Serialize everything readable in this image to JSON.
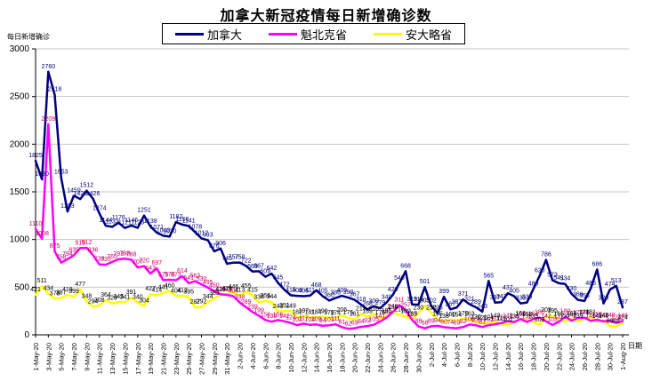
{
  "title": "加拿大新冠疫情每日新增确诊数",
  "y_axis_title": "每日新增确诊",
  "x_axis_title": "日期",
  "legend": [
    {
      "label": "加拿大",
      "color": "#000080"
    },
    {
      "label": "魁北克省",
      "color": "#FF00FF"
    },
    {
      "label": "安大略省",
      "color": "#FFFF00"
    }
  ],
  "chart_data": {
    "type": "line",
    "title": "加拿大新冠疫情每日新增确诊数",
    "xlabel": "日期",
    "ylabel": "每日新增确诊",
    "ylim": [
      0,
      3000
    ],
    "y_ticks": [
      0,
      500,
      1000,
      1500,
      2000,
      2500,
      3000
    ],
    "grid": true,
    "legend_position": "top",
    "x_tick_every": 2,
    "x": [
      "1-May-20",
      "2-May-20",
      "3-May-20",
      "4-May-20",
      "5-May-20",
      "6-May-20",
      "7-May-20",
      "8-May-20",
      "9-May-20",
      "10-May-20",
      "11-May-20",
      "12-May-20",
      "13-May-20",
      "14-May-20",
      "15-May-20",
      "16-May-20",
      "17-May-20",
      "18-May-20",
      "19-May-20",
      "20-May-20",
      "21-May-20",
      "22-May-20",
      "23-May-20",
      "24-May-20",
      "25-May-20",
      "26-May-20",
      "27-May-20",
      "28-May-20",
      "29-May-20",
      "30-May-20",
      "31-May-20",
      "1-Jun-20",
      "2-Jun-20",
      "3-Jun-20",
      "4-Jun-20",
      "5-Jun-20",
      "6-Jun-20",
      "7-Jun-20",
      "8-Jun-20",
      "9-Jun-20",
      "10-Jun-20",
      "11-Jun-20",
      "12-Jun-20",
      "13-Jun-20",
      "14-Jun-20",
      "15-Jun-20",
      "16-Jun-20",
      "17-Jun-20",
      "18-Jun-20",
      "19-Jun-20",
      "20-Jun-20",
      "21-Jun-20",
      "22-Jun-20",
      "23-Jun-20",
      "24-Jun-20",
      "25-Jun-20",
      "26-Jun-20",
      "27-Jun-20",
      "28-Jun-20",
      "29-Jun-20",
      "30-Jun-20",
      "1-Jul-20",
      "2-Jul-20",
      "3-Jul-20",
      "4-Jul-20",
      "5-Jul-20",
      "6-Jul-20",
      "7-Jul-20",
      "8-Jul-20",
      "9-Jul-20",
      "10-Jul-20",
      "11-Jul-20",
      "12-Jul-20",
      "13-Jul-20",
      "14-Jul-20",
      "15-Jul-20",
      "16-Jul-20",
      "17-Jul-20",
      "18-Jul-20",
      "19-Jul-20",
      "20-Jul-20",
      "21-Jul-20",
      "22-Jul-20",
      "23-Jul-20",
      "24-Jul-20",
      "25-Jul-20",
      "26-Jul-20",
      "27-Jul-20",
      "28-Jul-20",
      "29-Jul-20",
      "30-Jul-20",
      "31-Jul-20",
      "1-Aug-20"
    ],
    "series": [
      {
        "key": "canada",
        "name": "加拿大",
        "color": "#000080",
        "label_color": "#000080",
        "values": [
          1825,
          1630,
          2760,
          2518,
          1653,
          1293,
          1459,
          1425,
          1512,
          1426,
          1274,
          1144,
          1133,
          1176,
          1121,
          1146,
          1123,
          1251,
          1138,
          1071,
          1040,
          1030,
          1182,
          1156,
          1141,
          1078,
          1012,
          993,
          876,
          906,
          745,
          757,
          758,
          722,
          663,
          667,
          609,
          642,
          545,
          472,
          415,
          409,
          405,
          411,
          468,
          405,
          360,
          386,
          409,
          390,
          367,
          318,
          268,
          300,
          279,
          340,
          420,
          540,
          668,
          319,
          316,
          501,
          302,
          226,
          399,
          267,
          287,
          371,
          321,
          289,
          243,
          565,
          337,
          343,
          437,
          405,
          330,
          339,
          480,
          620,
          786,
          573,
          541,
          534,
          430,
          366,
          355,
          486,
          686,
          329,
          474,
          513,
          287
        ]
      },
      {
        "key": "quebec",
        "name": "魁北克省",
        "color": "#FF00FF",
        "label_color": "#CC0066",
        "values": [
          1110,
          1008,
          2209,
          875,
          758,
          794,
          835,
          910,
          912,
          836,
          739,
          735,
          765,
          793,
          798,
          788,
          707,
          720,
          643,
          697,
          573,
          578,
          573,
          614,
          541,
          563,
          530,
          495,
          460,
          425,
          419,
          404,
          338,
          289,
          239,
          199,
          156,
          138,
          156,
          142,
          124,
          102,
          117,
          104,
          109,
          94,
          101,
          111,
          81,
          62,
          69,
          84,
          92,
          105,
          141,
          180,
          240,
          311,
          257,
          157,
          88,
          68,
          89,
          94,
          80,
          74,
          69,
          82,
          108,
          100,
          81,
          102,
          111,
          124,
          143,
          134,
          166,
          135,
          164,
          180,
          142,
          103,
          137,
          189,
          148,
          176,
          181,
          146,
          158,
          141,
          148,
          124,
          146
        ]
      },
      {
        "key": "ontario",
        "name": "安大略省",
        "color": "#FFFF00",
        "label_color": "#000000",
        "values": [
          421,
          511,
          434,
          378,
          387,
          418,
          399,
          477,
          348,
          294,
          308,
          364,
          329,
          345,
          341,
          391,
          340,
          304,
          427,
          414,
          441,
          460,
          404,
          412,
          395,
          287,
          292,
          344,
          383,
          419,
          428,
          446,
          413,
          455,
          415,
          338,
          356,
          344,
          243,
          251,
          249,
          182,
          197,
          181,
          184,
          190,
          178,
          174,
          206,
          175,
          161,
          219,
          189,
          216,
          175,
          195,
          235,
          210,
          189,
          165,
          230,
          305,
          230,
          165,
          138,
          160,
          154,
          170,
          163,
          130,
          120,
          124,
          143,
          111,
          102,
          135,
          164,
          158,
          135,
          103,
          203,
          195,
          165,
          137,
          169,
          139,
          176,
          181,
          141,
          148,
          89,
          88,
          124
        ]
      }
    ]
  }
}
